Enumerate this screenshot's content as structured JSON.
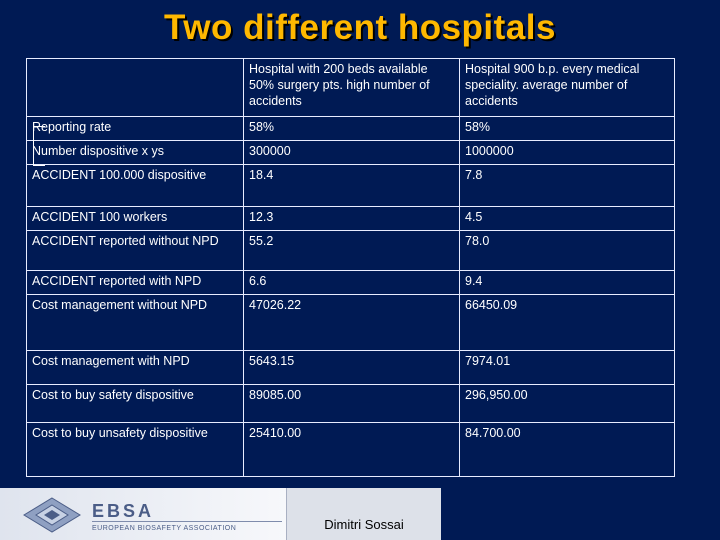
{
  "slide": {
    "title": "Two different hospitals"
  },
  "table": {
    "header": [
      "",
      "Hospital with 200 beds available 50% surgery pts. high number of accidents",
      "Hospital 900 b.p. every medical speciality. average number of accidents"
    ],
    "rows": [
      [
        "Reporting rate",
        "58%",
        "58%"
      ],
      [
        "Number dispositive x ys",
        "300000",
        "1000000"
      ],
      [
        "ACCIDENT 100.000 dispositive",
        "18.4",
        "7.8"
      ],
      [
        "ACCIDENT 100 workers",
        "12.3",
        "4.5"
      ],
      [
        "ACCIDENT reported without NPD",
        "55.2",
        "78.0"
      ],
      [
        "ACCIDENT reported with NPD",
        "6.6",
        "9.4"
      ],
      [
        "Cost management without NPD",
        "47026.22",
        "66450.09"
      ],
      [
        "Cost management with NPD",
        "5643.15",
        "7974.01"
      ],
      [
        "Cost to buy safety dispositive",
        "89085.00",
        "296,950.00"
      ],
      [
        "Cost to buy unsafety dispositive",
        "25410.00",
        "84.700.00"
      ]
    ]
  },
  "footer": {
    "logo_name": "EBSA",
    "logo_tagline": "EUROPEAN BIOSAFETY ASSOCIATION",
    "author": "Dimitri Sossai"
  },
  "colors": {
    "background": "#001a54",
    "title": "#ffb800",
    "text": "#ffffff"
  }
}
